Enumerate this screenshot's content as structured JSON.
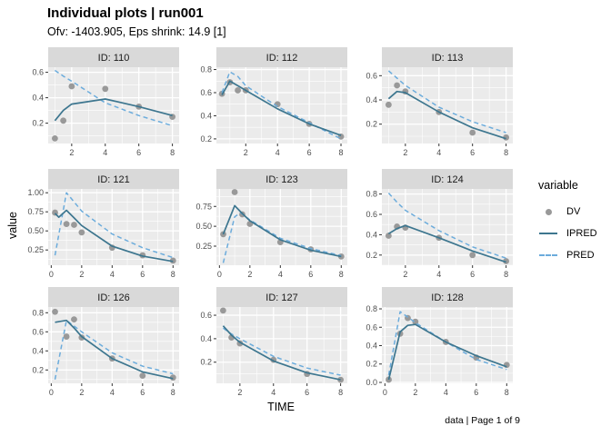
{
  "header": {
    "title": "Individual plots | run001",
    "subtitle": "Ofv: -1403.905, Eps shrink: 14.9 [1]"
  },
  "axes": {
    "x_label": "TIME",
    "y_label": "value"
  },
  "caption": "data | Page 1 of 9",
  "legend": {
    "title": "variable",
    "items": [
      {
        "label": "DV",
        "type": "point"
      },
      {
        "label": "IPRED",
        "type": "solid-line"
      },
      {
        "label": "PRED",
        "type": "dashed-line"
      }
    ]
  },
  "colors": {
    "panel_bg": "#EBEBEB",
    "strip_bg": "#D9D9D9",
    "grid": "#FFFFFF",
    "dv": "#999999",
    "ipred": "#3D768F",
    "pred": "#6CACDC",
    "tick_text": "#4D4D4D",
    "strip_text": "#1A1A1A"
  },
  "chart_data": {
    "type": "line",
    "title": "Individual plots | run001",
    "subtitle": "Ofv: -1403.905, Eps shrink: 14.9 [1]",
    "xlabel": "TIME",
    "ylabel": "value",
    "caption": "data | Page 1 of 9",
    "legend_title": "variable",
    "series_names": [
      "DV",
      "IPRED",
      "PRED"
    ],
    "grid": true,
    "facets": "3x3, free scales",
    "panels": [
      {
        "id": "ID: 110",
        "xlim": [
          0.6,
          8.4
        ],
        "ylim": [
          0.04,
          0.64
        ],
        "x_ticks": [
          "2",
          "4",
          "6",
          "8"
        ],
        "y_ticks": [
          "0.2",
          "0.4",
          "0.6"
        ],
        "dv": [
          [
            1,
            0.08
          ],
          [
            1.5,
            0.22
          ],
          [
            2,
            0.49
          ],
          [
            4,
            0.47
          ],
          [
            6,
            0.33
          ],
          [
            8,
            0.25
          ]
        ],
        "ipred": [
          [
            1,
            0.22
          ],
          [
            1.5,
            0.3
          ],
          [
            2,
            0.35
          ],
          [
            4,
            0.39
          ],
          [
            6,
            0.33
          ],
          [
            8,
            0.26
          ]
        ],
        "pred": [
          [
            1,
            0.615
          ],
          [
            1.5,
            0.57
          ],
          [
            2,
            0.53
          ],
          [
            4,
            0.36
          ],
          [
            6,
            0.26
          ],
          [
            8,
            0.18
          ]
        ]
      },
      {
        "id": "ID: 112",
        "xlim": [
          0.15,
          8.4
        ],
        "ylim": [
          0.16,
          0.82
        ],
        "x_ticks": [
          "2",
          "4",
          "6",
          "8"
        ],
        "y_ticks": [
          "0.2",
          "0.4",
          "0.6",
          "0.8"
        ],
        "dv": [
          [
            0.5,
            0.59
          ],
          [
            1,
            0.69
          ],
          [
            1.5,
            0.62
          ],
          [
            2,
            0.62
          ],
          [
            4,
            0.5
          ],
          [
            6,
            0.33
          ],
          [
            8,
            0.22
          ]
        ],
        "ipred": [
          [
            0.5,
            0.58
          ],
          [
            1,
            0.7
          ],
          [
            1.5,
            0.66
          ],
          [
            2,
            0.62
          ],
          [
            4,
            0.46
          ],
          [
            6,
            0.33
          ],
          [
            8,
            0.23
          ]
        ],
        "pred": [
          [
            0.5,
            0.6
          ],
          [
            1,
            0.78
          ],
          [
            1.5,
            0.74
          ],
          [
            2,
            0.66
          ],
          [
            4,
            0.48
          ],
          [
            6,
            0.34
          ],
          [
            8,
            0.2
          ]
        ]
      },
      {
        "id": "ID: 113",
        "xlim": [
          0.6,
          8.4
        ],
        "ylim": [
          0.04,
          0.67
        ],
        "x_ticks": [
          "2",
          "4",
          "6",
          "8"
        ],
        "y_ticks": [
          "0.2",
          "0.4",
          "0.6"
        ],
        "dv": [
          [
            1,
            0.36
          ],
          [
            1.5,
            0.52
          ],
          [
            2,
            0.47
          ],
          [
            4,
            0.3
          ],
          [
            6,
            0.13
          ],
          [
            8,
            0.09
          ]
        ],
        "ipred": [
          [
            1,
            0.41
          ],
          [
            1.5,
            0.47
          ],
          [
            2,
            0.46
          ],
          [
            4,
            0.3
          ],
          [
            6,
            0.17
          ],
          [
            8,
            0.08
          ]
        ],
        "pred": [
          [
            1,
            0.64
          ],
          [
            1.5,
            0.58
          ],
          [
            2,
            0.52
          ],
          [
            4,
            0.34
          ],
          [
            6,
            0.22
          ],
          [
            8,
            0.13
          ]
        ]
      },
      {
        "id": "ID: 121",
        "xlim": [
          -0.2,
          8.4
        ],
        "ylim": [
          0.05,
          1.05
        ],
        "x_ticks": [
          "0",
          "2",
          "4",
          "6",
          "8"
        ],
        "y_ticks": [
          "0.25",
          "0.50",
          "0.75",
          "1.00"
        ],
        "dv": [
          [
            0.25,
            0.74
          ],
          [
            1,
            0.59
          ],
          [
            1.5,
            0.58
          ],
          [
            2,
            0.48
          ],
          [
            4,
            0.28
          ],
          [
            6,
            0.18
          ],
          [
            8,
            0.11
          ]
        ],
        "ipred": [
          [
            0.25,
            0.73
          ],
          [
            0.5,
            0.68
          ],
          [
            1,
            0.77
          ],
          [
            1.5,
            0.67
          ],
          [
            2,
            0.57
          ],
          [
            4,
            0.3
          ],
          [
            6,
            0.17
          ],
          [
            8,
            0.1
          ]
        ],
        "pred": [
          [
            0.25,
            0.18
          ],
          [
            1,
            1.0
          ],
          [
            1.5,
            0.88
          ],
          [
            2,
            0.76
          ],
          [
            4,
            0.46
          ],
          [
            6,
            0.28
          ],
          [
            8,
            0.15
          ]
        ]
      },
      {
        "id": "ID: 123",
        "xlim": [
          -0.2,
          8.4
        ],
        "ylim": [
          0.01,
          0.97
        ],
        "x_ticks": [
          "0",
          "2",
          "4",
          "6",
          "8"
        ],
        "y_ticks": [
          "0.25",
          "0.50",
          "0.75"
        ],
        "dv": [
          [
            0.25,
            0.4
          ],
          [
            1,
            0.93
          ],
          [
            1.5,
            0.65
          ],
          [
            2,
            0.53
          ],
          [
            4,
            0.3
          ],
          [
            6,
            0.21
          ],
          [
            8,
            0.12
          ]
        ],
        "ipred": [
          [
            0.25,
            0.4
          ],
          [
            1,
            0.76
          ],
          [
            1.5,
            0.66
          ],
          [
            2,
            0.57
          ],
          [
            4,
            0.33
          ],
          [
            6,
            0.2
          ],
          [
            8,
            0.12
          ]
        ],
        "pred": [
          [
            0.25,
            0.04
          ],
          [
            1,
            0.62
          ],
          [
            1.4,
            0.67
          ],
          [
            2,
            0.58
          ],
          [
            4,
            0.35
          ],
          [
            6,
            0.22
          ],
          [
            8,
            0.13
          ]
        ]
      },
      {
        "id": "ID: 124",
        "xlim": [
          0.6,
          8.4
        ],
        "ylim": [
          0.1,
          0.85
        ],
        "x_ticks": [
          "2",
          "4",
          "6",
          "8"
        ],
        "y_ticks": [
          "0.2",
          "0.4",
          "0.6",
          "0.8"
        ],
        "dv": [
          [
            1,
            0.39
          ],
          [
            1.5,
            0.48
          ],
          [
            2,
            0.47
          ],
          [
            4,
            0.37
          ],
          [
            6,
            0.2
          ],
          [
            8,
            0.14
          ]
        ],
        "ipred": [
          [
            1,
            0.41
          ],
          [
            1.5,
            0.46
          ],
          [
            2,
            0.49
          ],
          [
            4,
            0.37
          ],
          [
            6,
            0.24
          ],
          [
            8,
            0.13
          ]
        ],
        "pred": [
          [
            1,
            0.81
          ],
          [
            1.5,
            0.72
          ],
          [
            2,
            0.64
          ],
          [
            4,
            0.44
          ],
          [
            6,
            0.28
          ],
          [
            8,
            0.17
          ]
        ]
      },
      {
        "id": "ID: 126",
        "xlim": [
          -0.2,
          8.4
        ],
        "ylim": [
          0.06,
          0.86
        ],
        "x_ticks": [
          "0",
          "2",
          "4",
          "6",
          "8"
        ],
        "y_ticks": [
          "0.2",
          "0.4",
          "0.6",
          "0.8"
        ],
        "dv": [
          [
            0.25,
            0.81
          ],
          [
            1,
            0.55
          ],
          [
            1.5,
            0.73
          ],
          [
            2,
            0.54
          ],
          [
            4,
            0.32
          ],
          [
            6,
            0.14
          ],
          [
            8,
            0.12
          ]
        ],
        "ipred": [
          [
            0.25,
            0.7
          ],
          [
            1,
            0.72
          ],
          [
            1.5,
            0.64
          ],
          [
            2,
            0.55
          ],
          [
            4,
            0.32
          ],
          [
            6,
            0.18
          ],
          [
            8,
            0.11
          ]
        ],
        "pred": [
          [
            0.25,
            0.1
          ],
          [
            1,
            0.72
          ],
          [
            1.5,
            0.66
          ],
          [
            2,
            0.6
          ],
          [
            4,
            0.38
          ],
          [
            6,
            0.24
          ],
          [
            8,
            0.16
          ]
        ]
      },
      {
        "id": "ID: 127",
        "xlim": [
          0.6,
          8.4
        ],
        "ylim": [
          0.02,
          0.67
        ],
        "x_ticks": [
          "2",
          "4",
          "6",
          "8"
        ],
        "y_ticks": [
          "0.2",
          "0.4",
          "0.6"
        ],
        "dv": [
          [
            1,
            0.64
          ],
          [
            1.5,
            0.41
          ],
          [
            2,
            0.36
          ],
          [
            4,
            0.22
          ],
          [
            6,
            0.1
          ],
          [
            8,
            0.05
          ]
        ],
        "ipred": [
          [
            1,
            0.51
          ],
          [
            1.5,
            0.43
          ],
          [
            2,
            0.37
          ],
          [
            4,
            0.21
          ],
          [
            6,
            0.11
          ],
          [
            8,
            0.05
          ]
        ],
        "pred": [
          [
            1,
            0.49
          ],
          [
            1.5,
            0.44
          ],
          [
            2,
            0.4
          ],
          [
            4,
            0.25
          ],
          [
            6,
            0.15
          ],
          [
            8,
            0.09
          ]
        ]
      },
      {
        "id": "ID: 128",
        "xlim": [
          -0.2,
          8.4
        ],
        "ylim": [
          -0.01,
          0.82
        ],
        "x_ticks": [
          "0",
          "2",
          "4",
          "6",
          "8"
        ],
        "y_ticks": [
          "0.0",
          "0.2",
          "0.4",
          "0.6",
          "0.8"
        ],
        "dv": [
          [
            0.25,
            0.03
          ],
          [
            1,
            0.53
          ],
          [
            1.5,
            0.7
          ],
          [
            2,
            0.66
          ],
          [
            4,
            0.44
          ],
          [
            6,
            0.27
          ],
          [
            8,
            0.19
          ]
        ],
        "ipred": [
          [
            0.25,
            0.03
          ],
          [
            1,
            0.55
          ],
          [
            1.5,
            0.62
          ],
          [
            2,
            0.63
          ],
          [
            4,
            0.44
          ],
          [
            6,
            0.29
          ],
          [
            8,
            0.17
          ]
        ],
        "pred": [
          [
            0.25,
            0.08
          ],
          [
            1,
            0.77
          ],
          [
            1.5,
            0.71
          ],
          [
            2,
            0.65
          ],
          [
            4,
            0.44
          ],
          [
            6,
            0.25
          ],
          [
            8,
            0.14
          ]
        ]
      }
    ]
  }
}
